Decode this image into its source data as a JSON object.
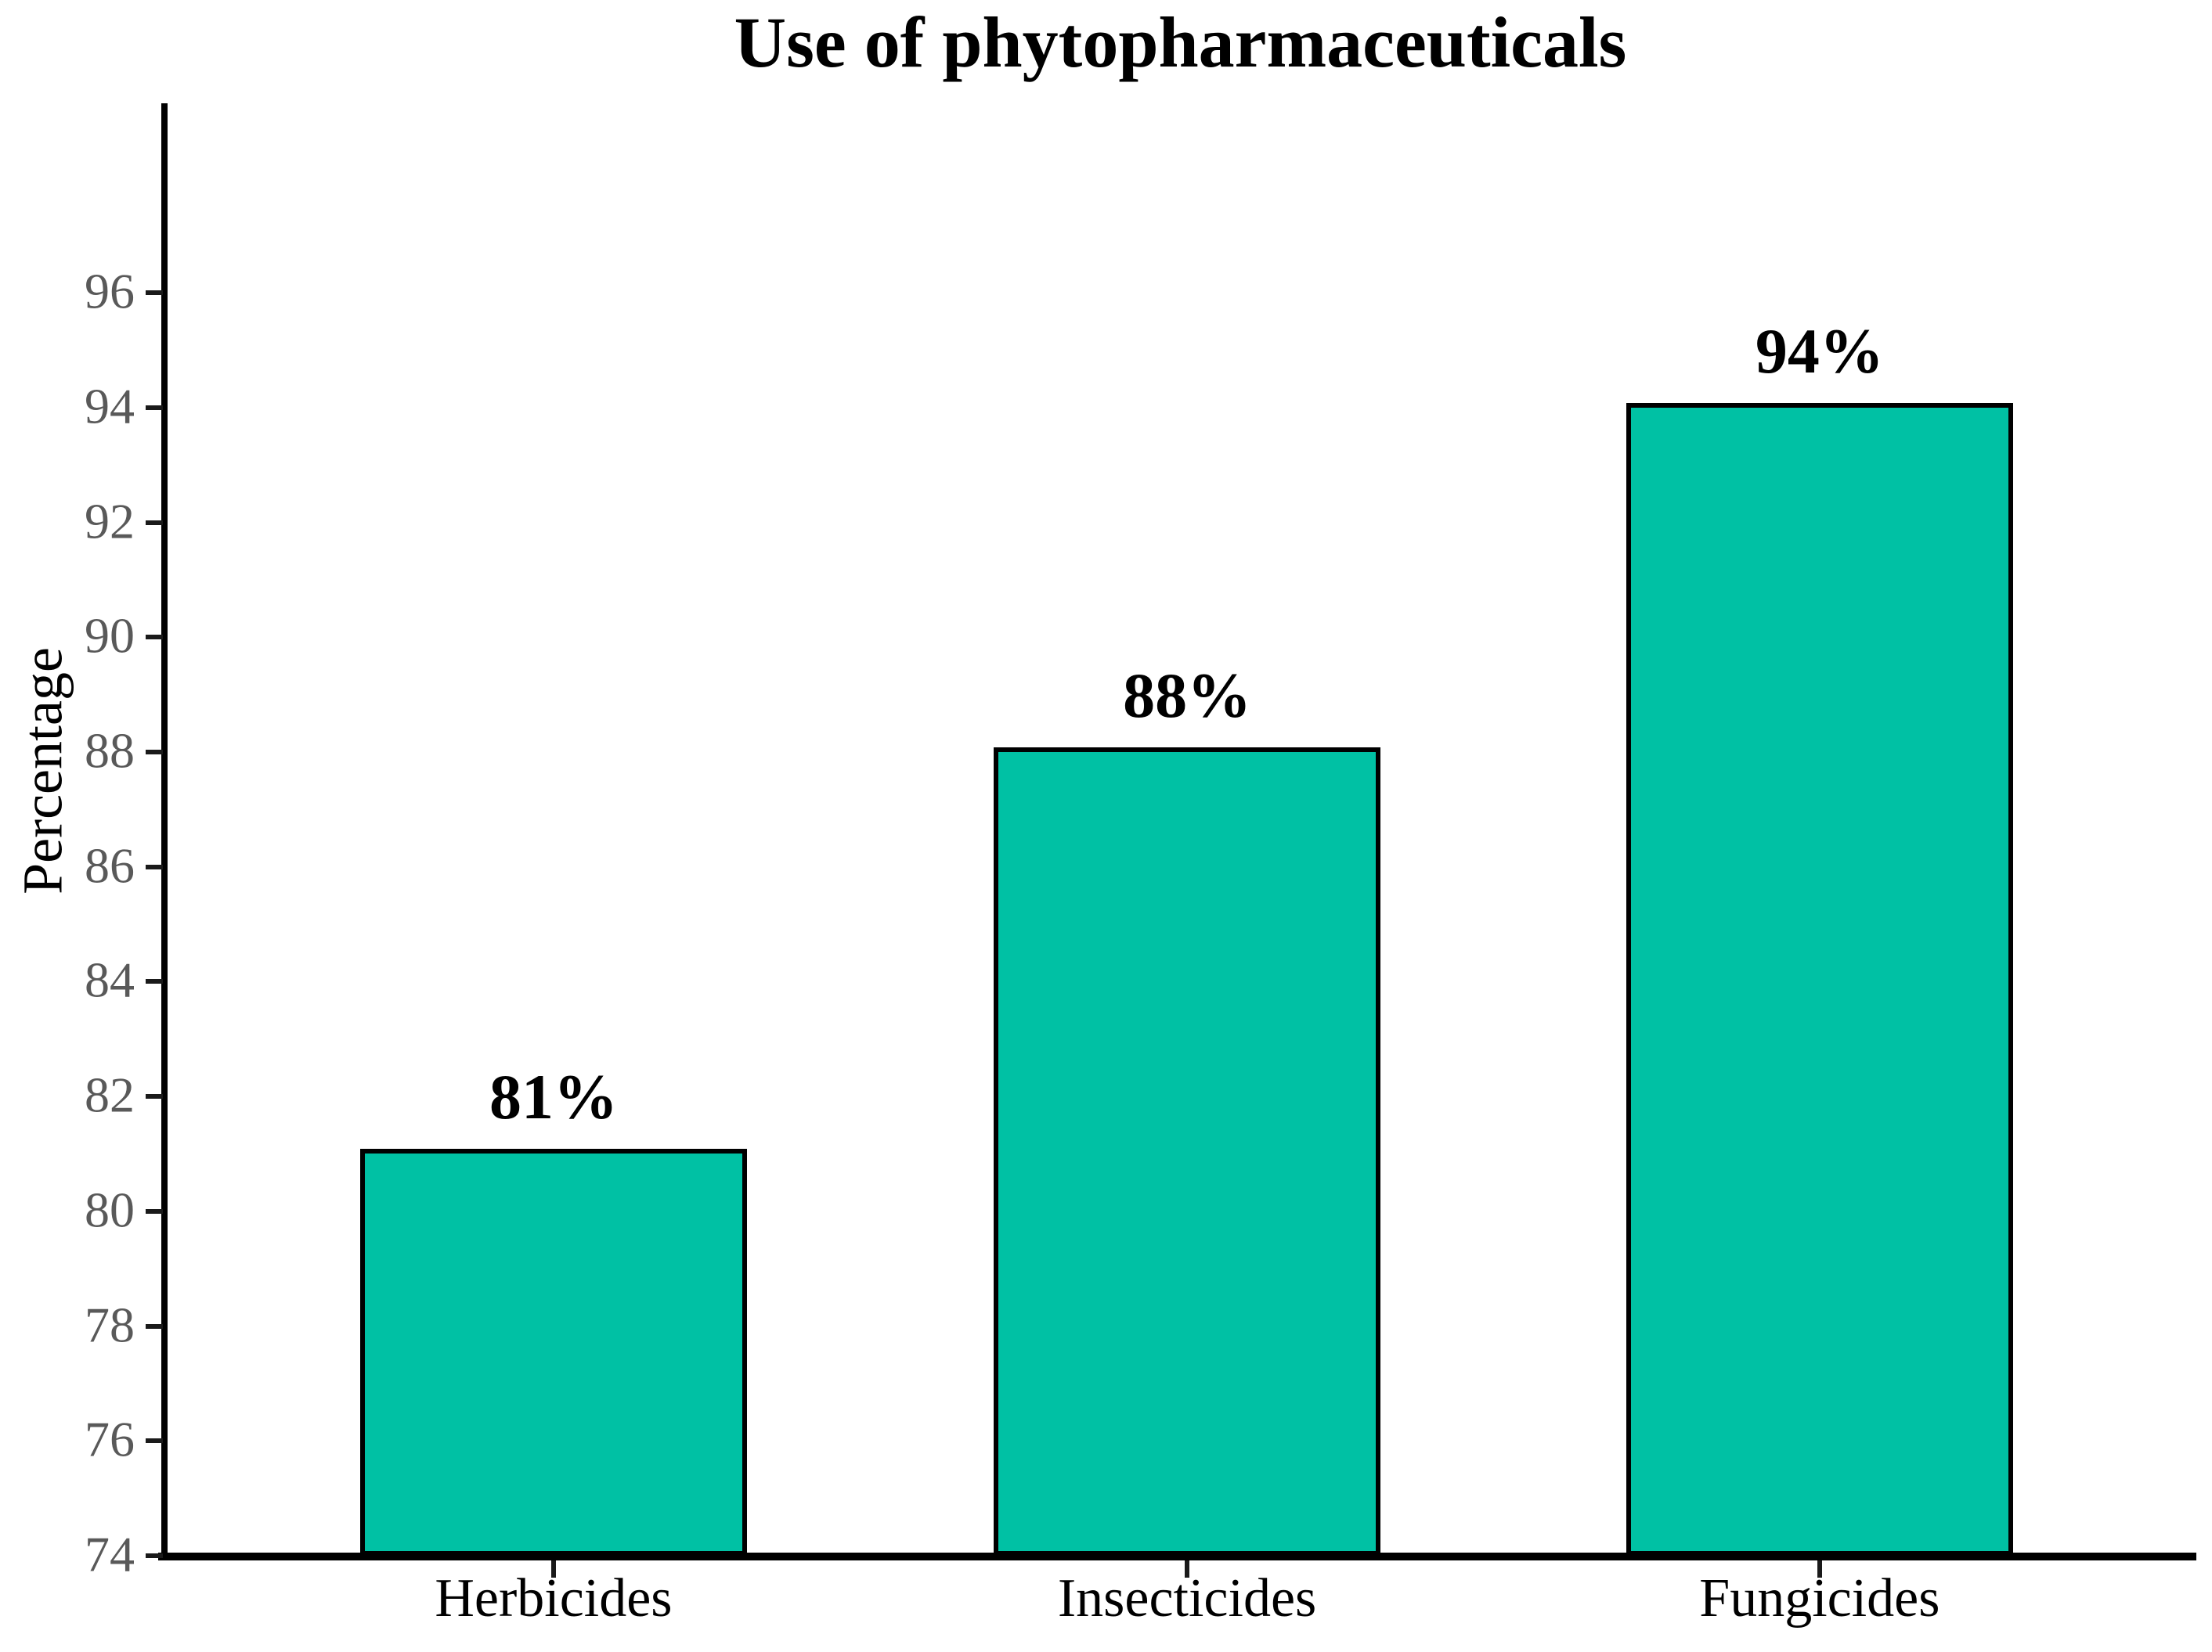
{
  "figure": {
    "background_color": "#ffffff"
  },
  "chart_data": {
    "type": "bar",
    "title": "Use of phytopharmaceuticals",
    "categories": [
      "Herbicides",
      "Insecticides",
      "Fungicides"
    ],
    "values": [
      81,
      88,
      94
    ],
    "value_labels": [
      "81%",
      "88%",
      "94%"
    ],
    "series": [
      {
        "name": "Use of phytopharmaceuticals",
        "values": [
          81,
          88,
          94
        ]
      }
    ],
    "xlabel": "",
    "ylabel": "Percentage",
    "ylim": [
      74,
      99.3
    ],
    "yticks": [
      74,
      76,
      78,
      80,
      82,
      84,
      86,
      88,
      90,
      92,
      94,
      96
    ],
    "grid": false,
    "legend": "none",
    "bar_color": "#00C1A4",
    "bar_edge_color": "#000000",
    "axis_color": "#000000",
    "tick_label_color": "#595959",
    "text_color": "#000000"
  }
}
